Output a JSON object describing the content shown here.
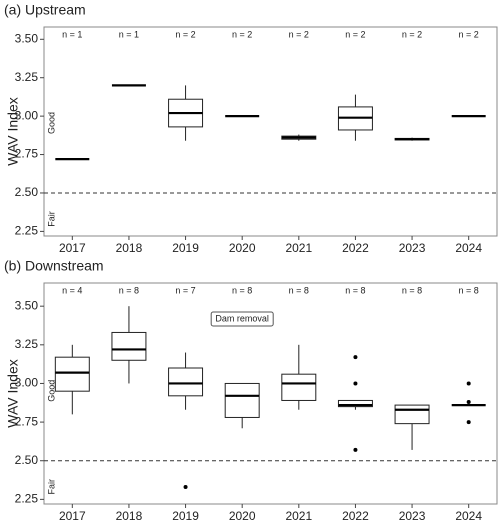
{
  "chart_data": [
    {
      "type": "box",
      "title": "(a) Upstream",
      "ylabel": "WAV Index",
      "categories": [
        "2017",
        "2018",
        "2019",
        "2020",
        "2021",
        "2022",
        "2023",
        "2024"
      ],
      "n_labels": [
        "n = 1",
        "n = 1",
        "n = 2",
        "n = 2",
        "n = 2",
        "n = 2",
        "n = 2",
        "n = 2"
      ],
      "boxes": [
        {
          "min": 2.72,
          "q1": 2.72,
          "median": 2.72,
          "q3": 2.72,
          "max": 2.72,
          "outliers": []
        },
        {
          "min": 3.2,
          "q1": 3.2,
          "median": 3.2,
          "q3": 3.2,
          "max": 3.2,
          "outliers": []
        },
        {
          "min": 2.84,
          "q1": 2.93,
          "median": 3.02,
          "q3": 3.11,
          "max": 3.2,
          "outliers": []
        },
        {
          "min": 3.0,
          "q1": 3.0,
          "median": 3.0,
          "q3": 3.0,
          "max": 3.0,
          "outliers": []
        },
        {
          "min": 2.84,
          "q1": 2.85,
          "median": 2.86,
          "q3": 2.87,
          "max": 2.88,
          "outliers": []
        },
        {
          "min": 2.84,
          "q1": 2.91,
          "median": 2.99,
          "q3": 3.06,
          "max": 3.14,
          "outliers": []
        },
        {
          "min": 2.84,
          "q1": 2.845,
          "median": 2.85,
          "q3": 2.855,
          "max": 2.86,
          "outliers": []
        },
        {
          "min": 3.0,
          "q1": 3.0,
          "median": 3.0,
          "q3": 3.0,
          "max": 3.0,
          "outliers": []
        }
      ],
      "ylim": [
        2.22,
        3.58
      ],
      "yticks": [
        2.25,
        {
          "value": 2.5,
          "label": "2.50"
        },
        2.75,
        {
          "value": 3,
          "label": "3.00"
        },
        3.25,
        {
          "value": 3.5,
          "label": "3.50"
        }
      ],
      "threshold": 2.5,
      "upper_region": "Good",
      "lower_region": "Fair"
    },
    {
      "type": "box",
      "title": "(b) Downstream",
      "ylabel": "WAV Index",
      "categories": [
        "2017",
        "2018",
        "2019",
        "2020",
        "2021",
        "2022",
        "2023",
        "2024"
      ],
      "n_labels": [
        "n = 4",
        "n = 8",
        "n = 7",
        "n = 8",
        "n = 8",
        "n = 8",
        "n = 8",
        "n = 8"
      ],
      "boxes": [
        {
          "min": 2.8,
          "q1": 2.95,
          "median": 3.07,
          "q3": 3.17,
          "max": 3.25,
          "outliers": []
        },
        {
          "min": 3.0,
          "q1": 3.15,
          "median": 3.22,
          "q3": 3.33,
          "max": 3.5,
          "outliers": []
        },
        {
          "min": 2.83,
          "q1": 2.92,
          "median": 3.0,
          "q3": 3.1,
          "max": 3.2,
          "outliers": [
            2.33
          ]
        },
        {
          "min": 2.71,
          "q1": 2.78,
          "median": 2.92,
          "q3": 3.0,
          "max": 3.0,
          "outliers": []
        },
        {
          "min": 2.83,
          "q1": 2.89,
          "median": 3.0,
          "q3": 3.06,
          "max": 3.25,
          "outliers": []
        },
        {
          "min": 2.83,
          "q1": 2.85,
          "median": 2.86,
          "q3": 2.89,
          "max": 2.89,
          "outliers": [
            3.17,
            3.0,
            2.57
          ]
        },
        {
          "min": 2.57,
          "q1": 2.74,
          "median": 2.83,
          "q3": 2.86,
          "max": 2.86,
          "outliers": []
        },
        {
          "min": 2.86,
          "q1": 2.86,
          "median": 2.86,
          "q3": 2.86,
          "max": 2.86,
          "outliers": [
            3.0,
            2.88,
            2.75
          ]
        }
      ],
      "ylim": [
        2.22,
        3.65
      ],
      "yticks": [
        2.25,
        {
          "value": 2.5,
          "label": "2.50"
        },
        2.75,
        {
          "value": 3,
          "label": "3.00"
        },
        3.25,
        {
          "value": 3.5,
          "label": "3.50"
        }
      ],
      "threshold": 2.5,
      "upper_region": "Good",
      "lower_region": "Fair",
      "annotation": "Dam removal"
    }
  ]
}
